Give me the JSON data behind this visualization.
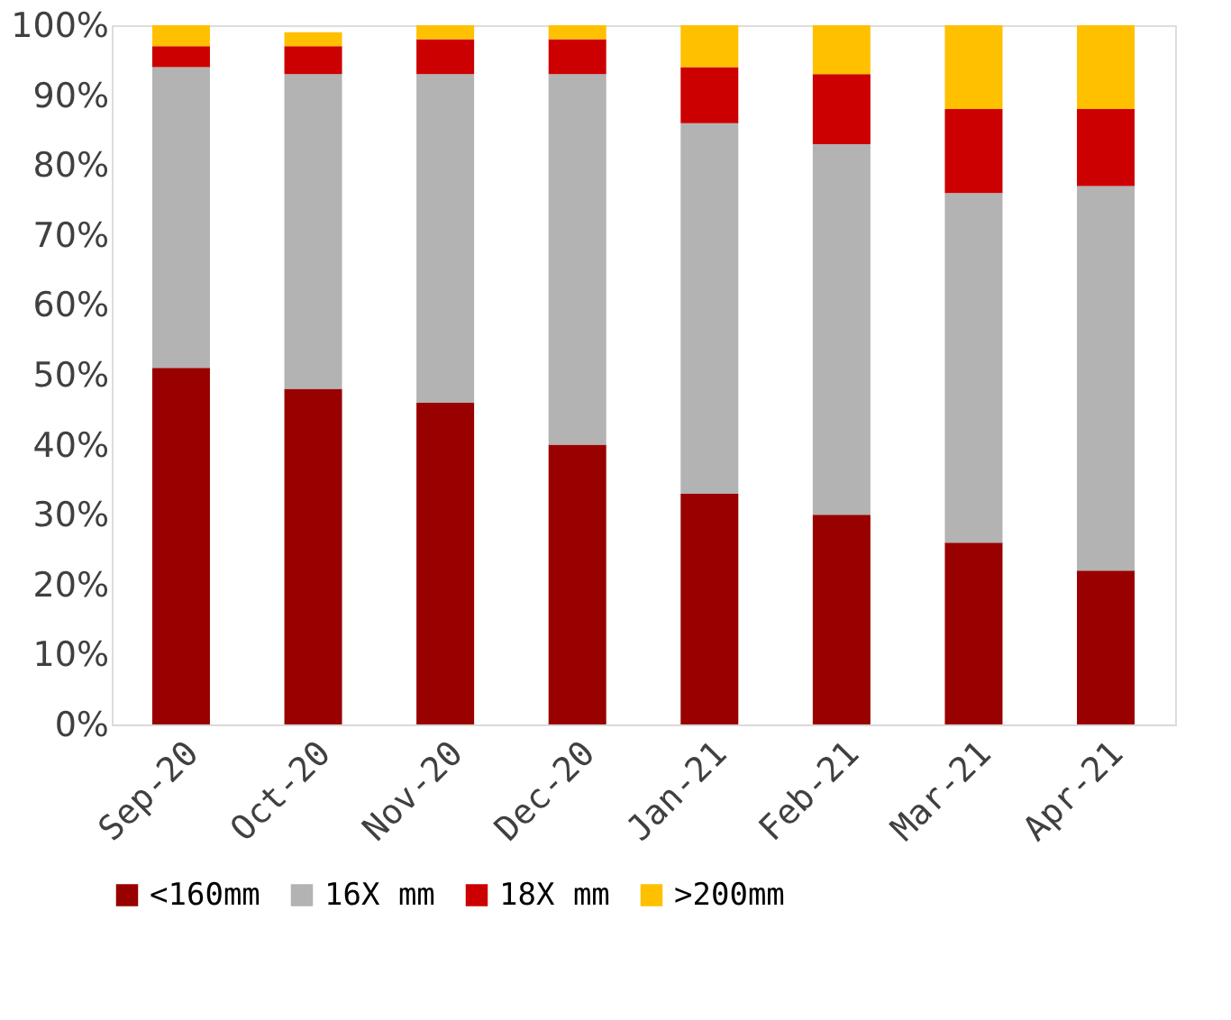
{
  "chart_data": {
    "type": "bar",
    "stacked": true,
    "categories": [
      "Sep-20",
      "Oct-20",
      "Nov-20",
      "Dec-20",
      "Jan-21",
      "Feb-21",
      "Mar-21",
      "Apr-21"
    ],
    "series": [
      {
        "name": "<160mm",
        "color": "#990000",
        "values": [
          51,
          48,
          46,
          40,
          33,
          30,
          26,
          22
        ]
      },
      {
        "name": "16X mm",
        "color": "#b3b3b3",
        "values": [
          43,
          45,
          47,
          53,
          53,
          53,
          50,
          55
        ]
      },
      {
        "name": "18X mm",
        "color": "#cc0000",
        "values": [
          3,
          4,
          5,
          5,
          8,
          10,
          12,
          11
        ]
      },
      {
        "name": ">200mm",
        "color": "#ffc000",
        "values": [
          3,
          2,
          2,
          2,
          6,
          7,
          12,
          12
        ]
      }
    ],
    "ylim": [
      0,
      100
    ],
    "yticks": [
      {
        "value": 0,
        "label": "0%"
      },
      {
        "value": 10,
        "label": "10%"
      },
      {
        "value": 20,
        "label": "20%"
      },
      {
        "value": 30,
        "label": "30%"
      },
      {
        "value": 40,
        "label": "40%"
      },
      {
        "value": 50,
        "label": "50%"
      },
      {
        "value": 60,
        "label": "60%"
      },
      {
        "value": 70,
        "label": "70%"
      },
      {
        "value": 80,
        "label": "80%"
      },
      {
        "value": 90,
        "label": "90%"
      },
      {
        "value": 100,
        "label": "100%"
      }
    ],
    "grid": false,
    "legend": "bottom"
  }
}
